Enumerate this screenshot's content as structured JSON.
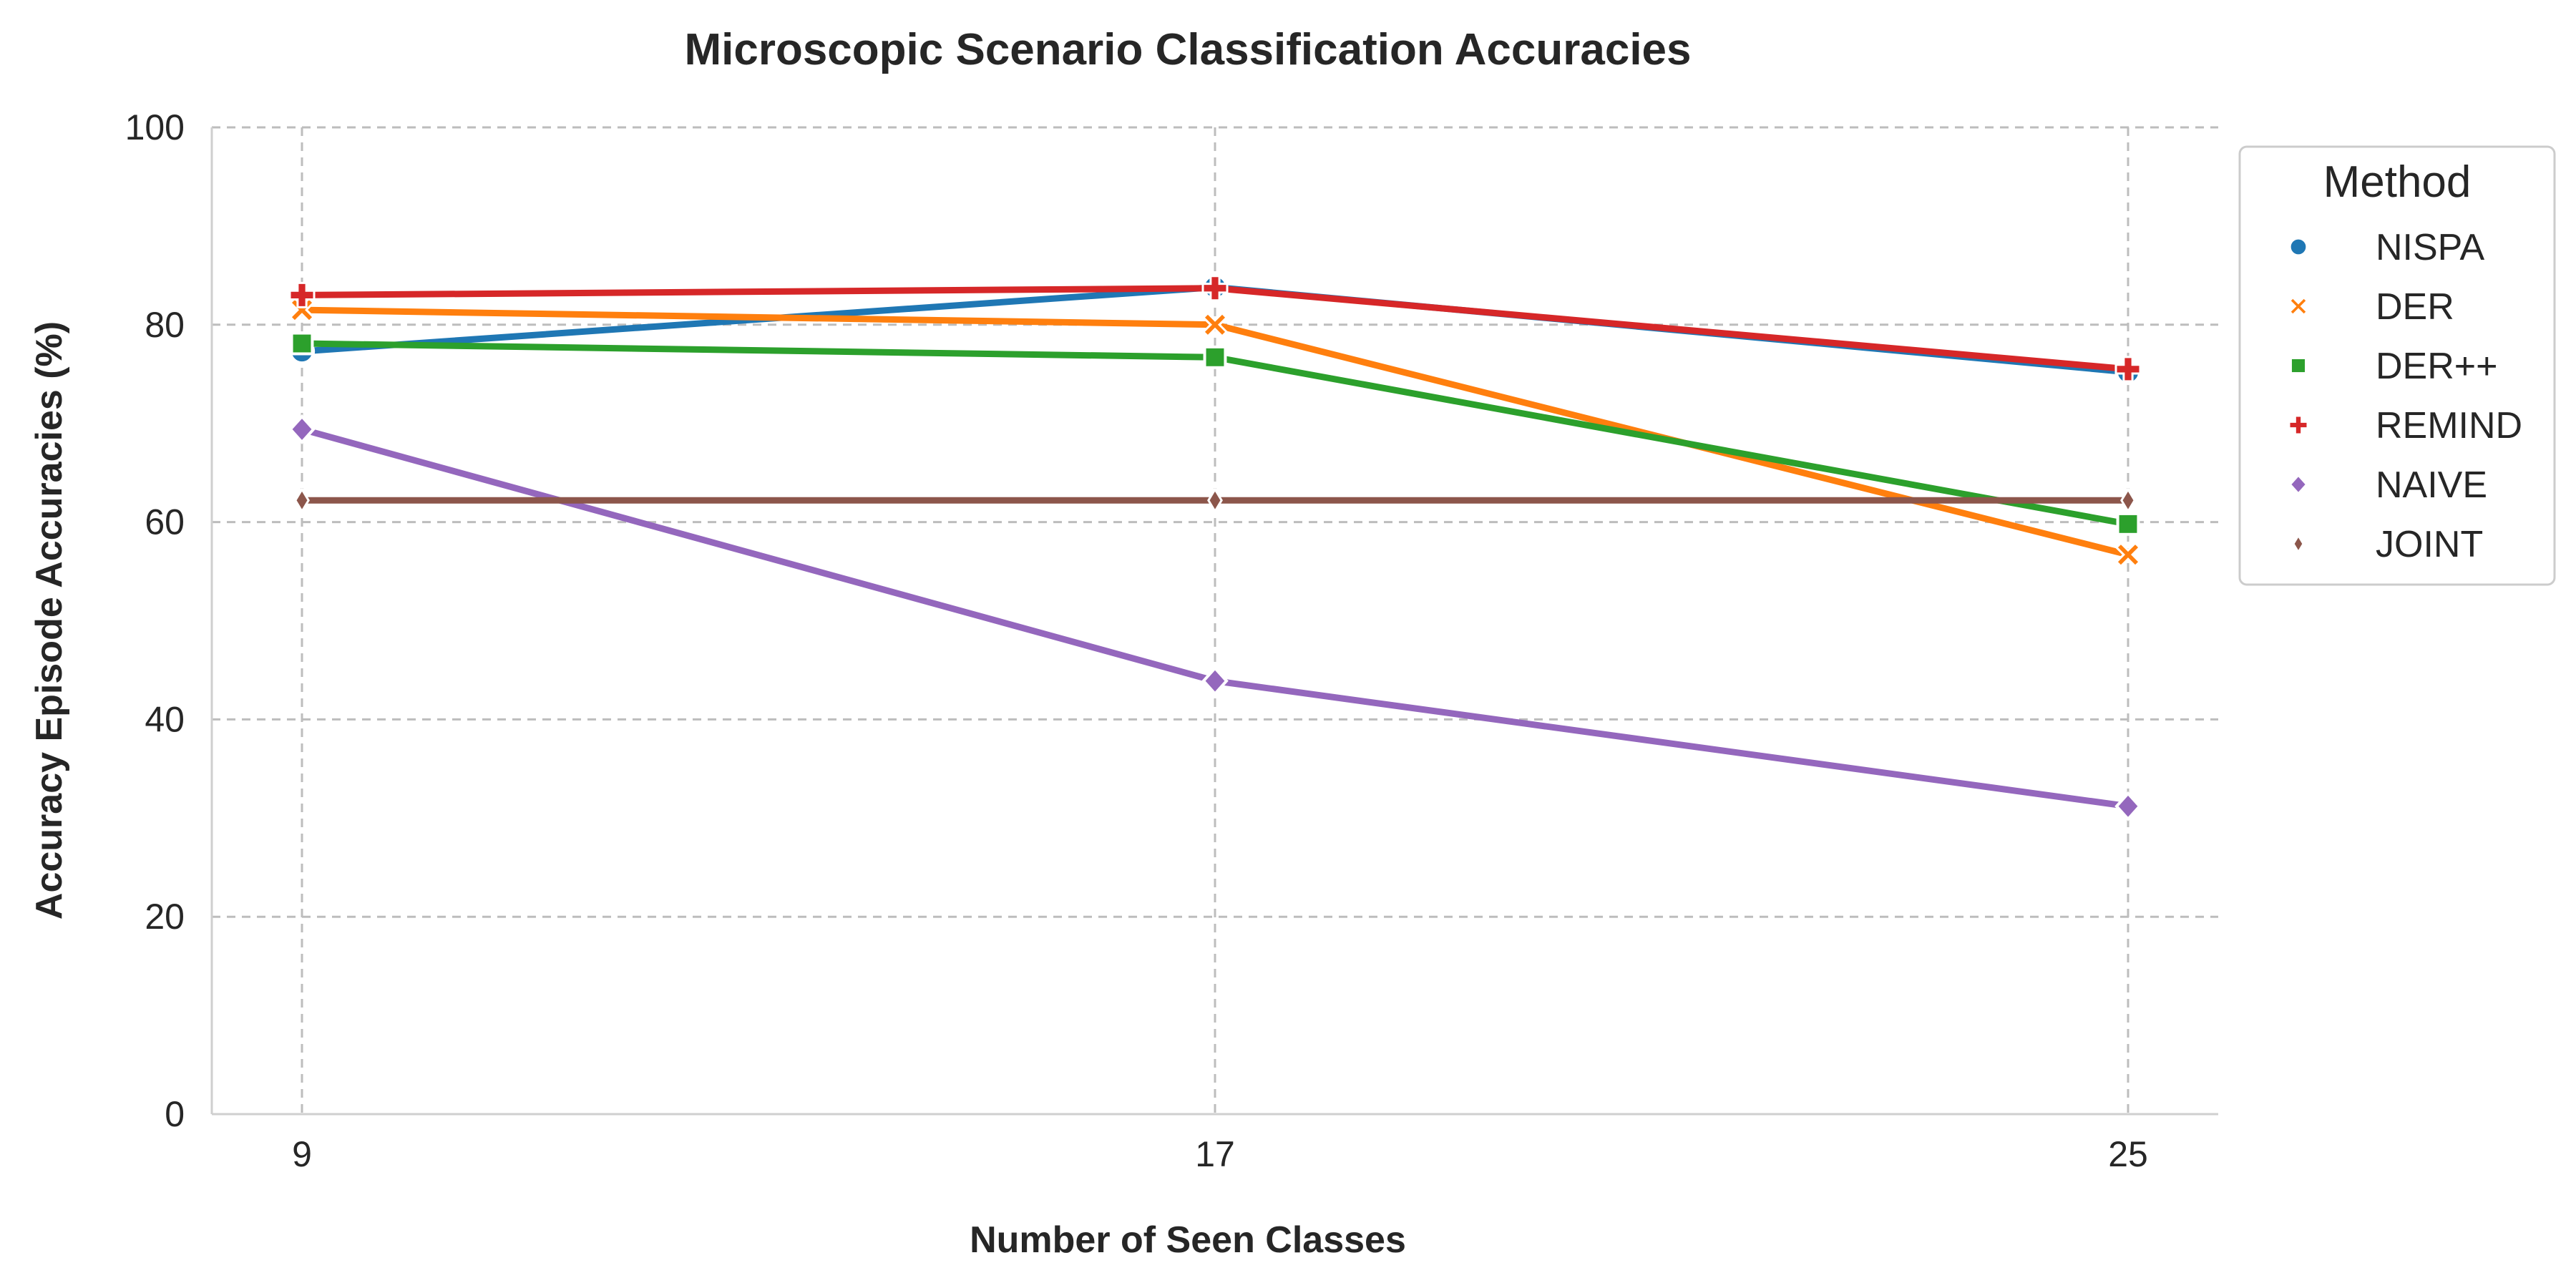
{
  "chart_data": {
    "type": "line",
    "title": "Microscopic Scenario Classification Accuracies",
    "xlabel": "Number of Seen Classes",
    "ylabel": "Accuracy Episode Accuracies (%)",
    "x": [
      9,
      17,
      25
    ],
    "x_ticks": [
      "9",
      "17",
      "25"
    ],
    "ylim": [
      0,
      100
    ],
    "y_ticks": [
      "0",
      "20",
      "40",
      "60",
      "80",
      "100"
    ],
    "grid": true,
    "legend": {
      "title": "Method",
      "position": "right"
    },
    "series": [
      {
        "name": "NISPA",
        "values": [
          77.3,
          83.8,
          75.2
        ],
        "color": "#1f77b4",
        "marker": "circle"
      },
      {
        "name": "DER",
        "values": [
          81.5,
          80.0,
          56.7
        ],
        "color": "#ff7f0e",
        "marker": "x"
      },
      {
        "name": "DER++",
        "values": [
          78.1,
          76.7,
          59.8
        ],
        "color": "#2ca02c",
        "marker": "square"
      },
      {
        "name": "REMIND",
        "values": [
          83.0,
          83.7,
          75.5
        ],
        "color": "#d62728",
        "marker": "plus"
      },
      {
        "name": "NAIVE",
        "values": [
          69.4,
          43.9,
          31.2
        ],
        "color": "#9467bd",
        "marker": "diamond"
      },
      {
        "name": "JOINT",
        "values": [
          62.2,
          62.2,
          62.2
        ],
        "color": "#8c564b",
        "marker": "thin-diamond"
      }
    ]
  }
}
